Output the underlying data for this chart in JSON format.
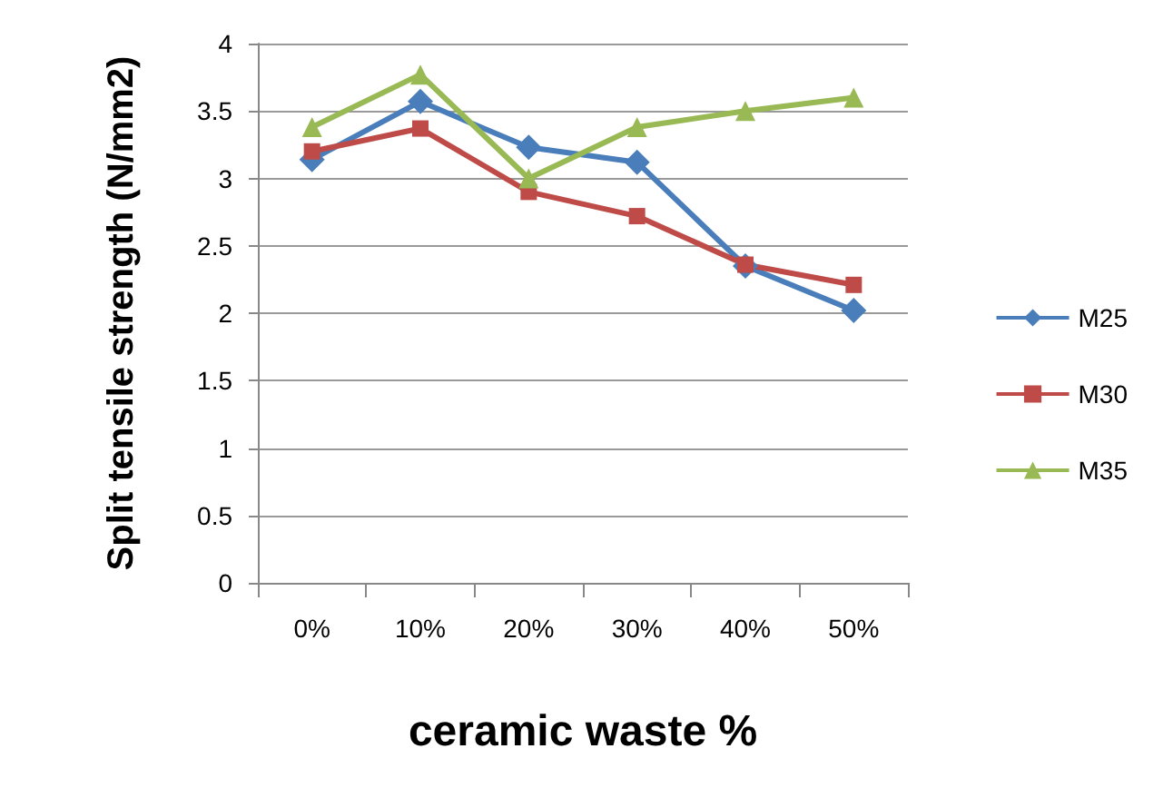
{
  "chart_data": {
    "type": "line",
    "xlabel": "ceramic waste %",
    "ylabel": "Split tensile strength (N/mm2)",
    "categories": [
      "0%",
      "10%",
      "20%",
      "30%",
      "40%",
      "50%"
    ],
    "series": [
      {
        "name": "M25",
        "color": "#4a7ebb",
        "marker": "diamond",
        "values": [
          3.14,
          3.57,
          3.23,
          3.12,
          2.35,
          2.02
        ]
      },
      {
        "name": "M30",
        "color": "#be4b48",
        "marker": "square",
        "values": [
          3.2,
          3.37,
          2.9,
          2.72,
          2.36,
          2.21
        ]
      },
      {
        "name": "M35",
        "color": "#98b954",
        "marker": "triangle",
        "values": [
          3.38,
          3.77,
          3.0,
          3.38,
          3.5,
          3.6
        ]
      }
    ],
    "ylim": [
      0,
      4
    ],
    "yticks": [
      0,
      0.5,
      1,
      1.5,
      2,
      2.5,
      3,
      3.5,
      4
    ],
    "grid": "y",
    "legend": "right"
  }
}
